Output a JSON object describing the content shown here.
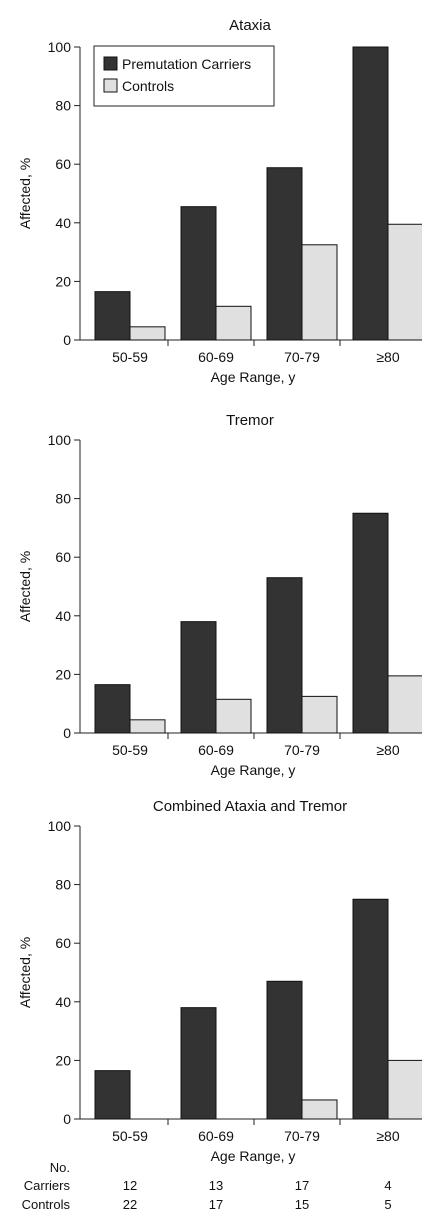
{
  "chart_data": [
    {
      "type": "bar",
      "title": "Ataxia",
      "xlabel": "Age Range, y",
      "ylabel": "Affected, %",
      "ylim": [
        0,
        100
      ],
      "yticks": [
        "0",
        "20",
        "40",
        "60",
        "80",
        "100"
      ],
      "categories": [
        "50-59",
        "60-69",
        "70-79",
        "≥80"
      ],
      "legend": "top-left",
      "series": [
        {
          "name": "Premutation Carriers",
          "color": "#333333",
          "values": [
            16.5,
            45.5,
            58.8,
            100
          ]
        },
        {
          "name": "Controls",
          "color": "#e0e0e0",
          "values": [
            4.5,
            11.5,
            32.5,
            39.5
          ]
        }
      ]
    },
    {
      "type": "bar",
      "title": "Tremor",
      "xlabel": "Age Range, y",
      "ylabel": "Affected, %",
      "ylim": [
        0,
        100
      ],
      "yticks": [
        "0",
        "20",
        "40",
        "60",
        "80",
        "100"
      ],
      "categories": [
        "50-59",
        "60-69",
        "70-79",
        "≥80"
      ],
      "series": [
        {
          "color": "#333333",
          "values": [
            16.5,
            38,
            53,
            75
          ]
        },
        {
          "color": "#e0e0e0",
          "values": [
            4.5,
            11.5,
            12.5,
            19.5
          ]
        }
      ]
    },
    {
      "type": "bar",
      "title": "Combined Ataxia and Tremor",
      "xlabel": "Age Range, y",
      "ylabel": "Affected, %",
      "ylim": [
        0,
        100
      ],
      "yticks": [
        "0",
        "20",
        "40",
        "60",
        "80",
        "100"
      ],
      "categories": [
        "50-59",
        "60-69",
        "70-79",
        "≥80"
      ],
      "series": [
        {
          "color": "#333333",
          "values": [
            16.5,
            38,
            47,
            75
          ]
        },
        {
          "color": "#e0e0e0",
          "values": [
            0,
            0,
            6.5,
            20
          ]
        }
      ]
    }
  ],
  "counts_table": {
    "header": "No.",
    "rows": [
      {
        "label": "Carriers",
        "values": [
          "12",
          "13",
          "17",
          "4"
        ]
      },
      {
        "label": "Controls",
        "values": [
          "22",
          "17",
          "15",
          "5"
        ]
      }
    ]
  }
}
